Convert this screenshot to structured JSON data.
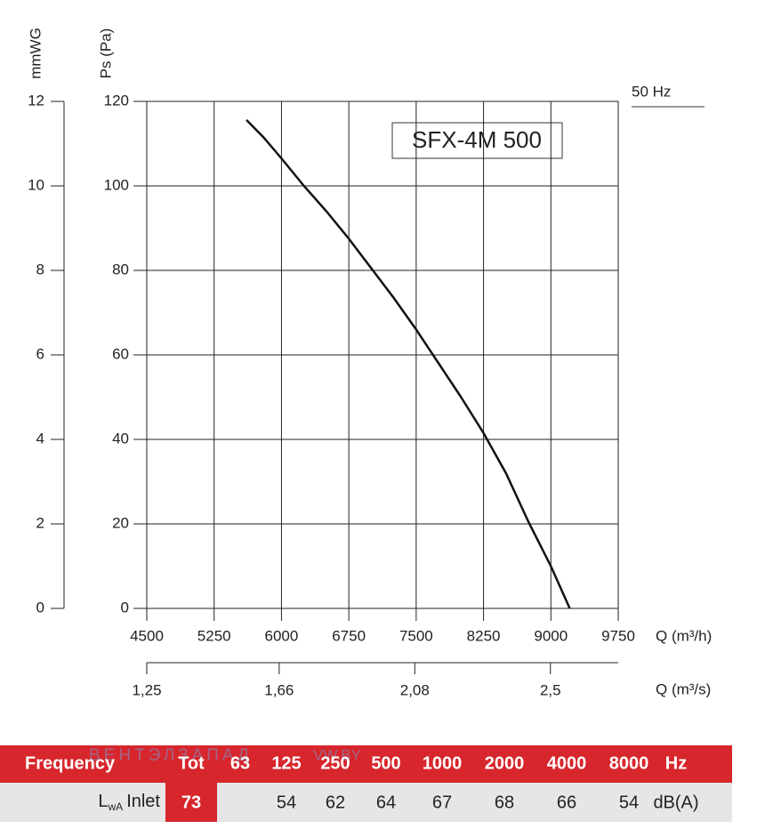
{
  "chart_data": {
    "type": "line",
    "title": "SFX-4M 500",
    "annotation": "50 Hz",
    "ylabel": "Ps (Pa)",
    "ylim": [
      0,
      120
    ],
    "yticks": [
      0,
      20,
      40,
      60,
      80,
      100,
      120
    ],
    "y2label": "mmWG",
    "y2lim": [
      0,
      12
    ],
    "y2ticks": [
      0,
      2,
      4,
      6,
      8,
      10,
      12
    ],
    "xlabel": "Q (m³/h)",
    "xlim": [
      4500,
      9750
    ],
    "xticks": [
      4500,
      5250,
      6000,
      6750,
      7500,
      8250,
      9000,
      9750
    ],
    "x2label": "Q (m³/s)",
    "x2lim": [
      1.25,
      2.71
    ],
    "x2ticks": [
      {
        "value": 1.25,
        "label": "1,25"
      },
      {
        "value": 1.66,
        "label": "1,66"
      },
      {
        "value": 2.08,
        "label": "2,08"
      },
      {
        "value": 2.5,
        "label": "2,5"
      }
    ],
    "grid": true,
    "color": "#111111",
    "x": [
      5610,
      5800,
      6000,
      6250,
      6500,
      6750,
      7000,
      7250,
      7500,
      7750,
      8000,
      8250,
      8500,
      8750,
      9000,
      9210
    ],
    "values": [
      115.6,
      111.5,
      106.5,
      100,
      94,
      87.5,
      80.5,
      73.5,
      66,
      58,
      50,
      41.5,
      32,
      20.5,
      10,
      0
    ]
  },
  "table": {
    "header": [
      "Frequency",
      "Tot",
      "63",
      "125",
      "250",
      "500",
      "1000",
      "2000",
      "4000",
      "8000",
      "Hz"
    ],
    "row_label": {
      "main": "L",
      "sub": "wA",
      "suffix": "Inlet"
    },
    "row": [
      73,
      null,
      54,
      62,
      64,
      67,
      68,
      66,
      54,
      "dB(A)"
    ]
  },
  "watermark": [
    "ВЕНТЭЛЗАПАД",
    "VW.BY"
  ]
}
